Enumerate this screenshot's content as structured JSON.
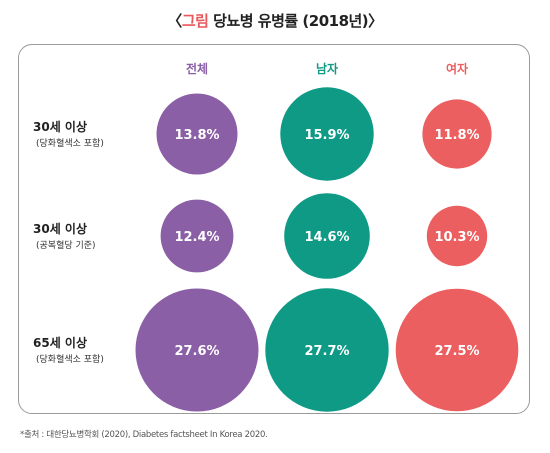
{
  "title": {
    "open": "〈",
    "accent": "그림",
    "text": "당뇨병 유병률 (2018년)",
    "close": "〉"
  },
  "source": "*출처 : 대한당뇨병학회 (2020), Diabetes factsheet In Korea 2020.",
  "chart_data": {
    "type": "bubble",
    "title": "당뇨병 유병률 (2018년)",
    "unit": "%",
    "categories": [
      {
        "main": "30세 이상",
        "sub": "(당화혈색소 포함)"
      },
      {
        "main": "30세 이상",
        "sub": "(공복혈당 기준)"
      },
      {
        "main": "65세 이상",
        "sub": "(당화혈색소 포함)"
      }
    ],
    "series": [
      {
        "name": "전체",
        "color": "#8a5fa6",
        "values": [
          13.8,
          12.4,
          27.6
        ],
        "labels": [
          "13.8%",
          "12.4%",
          "27.6%"
        ]
      },
      {
        "name": "남자",
        "color": "#0f9a86",
        "values": [
          15.9,
          14.6,
          27.7
        ],
        "labels": [
          "15.9%",
          "14.6%",
          "27.7%"
        ]
      },
      {
        "name": "여자",
        "color": "#eb5f60",
        "values": [
          11.8,
          10.3,
          27.5
        ],
        "labels": [
          "11.8%",
          "10.3%",
          "27.5%"
        ]
      }
    ]
  }
}
